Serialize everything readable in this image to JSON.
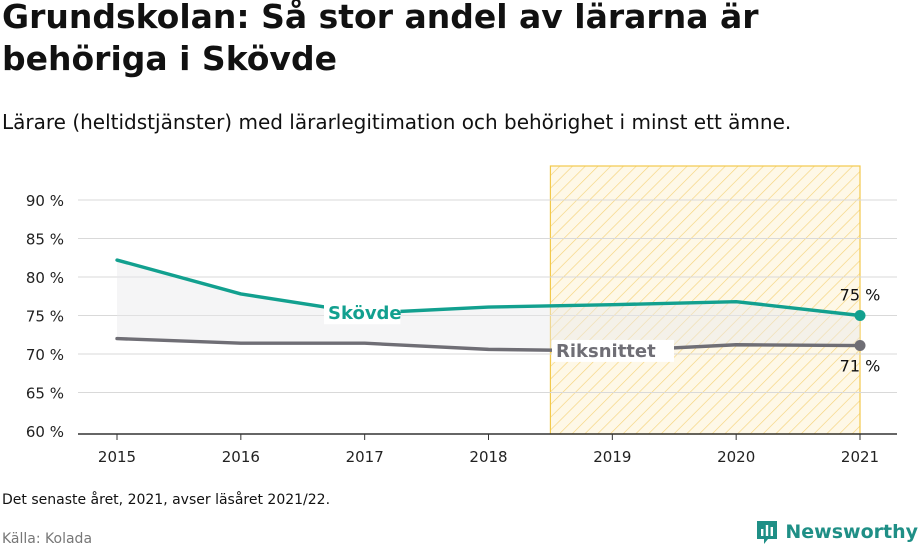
{
  "header": {
    "title": "Grundskolan: Så stor andel av lärarna är behöriga i Skövde",
    "subtitle": "Lärare (heltidstjänster) med lärarlegitimation och behörighet i minst ett ämne."
  },
  "footer": {
    "note": "Det senaste året, 2021, avser läsåret 2021/22.",
    "source": "Källa: Kolada",
    "brand": "Newsworthy"
  },
  "colors": {
    "skovde": "#12a08f",
    "riket": "#6f6e75",
    "highlight_fill": "#fdf3d4",
    "highlight_stroke": "#f2c94c",
    "brand": "#1f8f86"
  },
  "chart_data": {
    "type": "line",
    "x": [
      2015,
      2016,
      2017,
      2018,
      2019,
      2020,
      2021
    ],
    "ylim": [
      60,
      90
    ],
    "yticks": [
      60,
      65,
      70,
      75,
      80,
      85,
      90
    ],
    "ytick_labels": [
      "60 %",
      "65 %",
      "70 %",
      "75 %",
      "80 %",
      "85 %",
      "90 %"
    ],
    "xtick_labels": [
      "2015",
      "2016",
      "2017",
      "2018",
      "2019",
      "2020",
      "2021"
    ],
    "grid": true,
    "highlight_range": [
      2018.5,
      2021
    ],
    "series": [
      {
        "name": "Skövde",
        "values": [
          82.2,
          77.8,
          75.3,
          76.1,
          76.4,
          76.8,
          75.0
        ],
        "end_label": "75 %"
      },
      {
        "name": "Riksnittet",
        "values": [
          72.0,
          71.4,
          71.4,
          70.6,
          70.4,
          71.2,
          71.1
        ],
        "end_label": "71 %"
      }
    ]
  }
}
